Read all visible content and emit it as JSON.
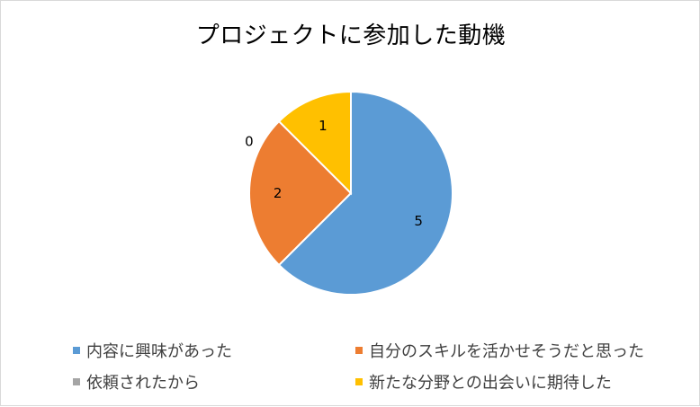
{
  "chart_data": {
    "type": "pie",
    "title": "プロジェクトに参加した動機",
    "categories": [
      "内容に興味があった",
      "自分のスキルを活かせそうだと思った",
      "依頼されたから",
      "新たな分野との出会いに期待した"
    ],
    "values": [
      5,
      2,
      0,
      1
    ],
    "colors": [
      "#5b9bd5",
      "#ed7d31",
      "#a5a5a5",
      "#ffc000"
    ],
    "data_labels": [
      "5",
      "2",
      "0",
      "1"
    ],
    "legend_position": "bottom"
  }
}
